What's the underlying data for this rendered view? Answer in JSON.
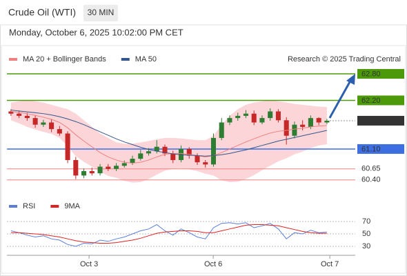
{
  "chart_data": {
    "type": "candlestick",
    "title": "Crude Oil (WTI)",
    "timeframe": "30 MIN",
    "datetime": "Monday, October 6, 2025 10:02:00 PM CET",
    "credit": "Research © 2025 Trading Central",
    "up_color": "#2e7d32",
    "down_color": "#c62828",
    "band_color": "#fbd5d8",
    "xlim": [
      -0.5,
      42.5
    ],
    "xticks": [
      {
        "value": 9.64,
        "label": "Oct 3"
      },
      {
        "value": 24.97,
        "label": "Oct 6"
      },
      {
        "value": 39.36,
        "label": "Oct 7"
      }
    ],
    "ylim": [
      60.1,
      63.3
    ],
    "open": [
      61.95,
      61.9,
      61.85,
      61.8,
      61.65,
      61.7,
      61.55,
      61.45,
      60.85,
      60.5,
      60.6,
      60.55,
      60.7,
      60.65,
      60.72,
      60.78,
      60.88,
      61.0,
      61.05,
      61.15,
      61.0,
      60.85,
      61.1,
      60.95,
      60.8,
      60.75,
      61.35,
      61.7,
      61.8,
      61.85,
      61.9,
      61.7,
      61.8,
      61.95,
      61.75,
      61.4,
      61.65,
      61.6,
      61.8,
      61.7
    ],
    "high": [
      62.0,
      61.97,
      61.92,
      61.86,
      61.76,
      61.78,
      61.62,
      61.5,
      60.92,
      60.66,
      60.68,
      60.76,
      60.76,
      60.78,
      60.84,
      60.95,
      61.08,
      61.12,
      61.3,
      61.2,
      61.06,
      61.18,
      61.14,
      61.0,
      60.85,
      61.45,
      61.8,
      61.86,
      61.92,
      61.98,
      61.97,
      61.86,
      62.02,
      62.0,
      61.82,
      61.72,
      61.75,
      61.86,
      61.82,
      61.78
    ],
    "low": [
      61.85,
      61.8,
      61.74,
      61.58,
      61.6,
      61.48,
      61.4,
      60.78,
      60.42,
      60.44,
      60.5,
      60.5,
      60.6,
      60.6,
      60.68,
      60.74,
      60.84,
      60.95,
      61.0,
      60.94,
      60.78,
      60.8,
      60.88,
      60.74,
      60.68,
      60.7,
      61.3,
      61.64,
      61.74,
      61.8,
      61.64,
      61.66,
      61.74,
      61.7,
      61.2,
      61.34,
      61.52,
      61.55,
      61.64,
      61.66
    ],
    "close": [
      61.9,
      61.85,
      61.8,
      61.65,
      61.7,
      61.55,
      61.45,
      60.85,
      60.5,
      60.6,
      60.55,
      60.7,
      60.65,
      60.72,
      60.78,
      60.88,
      61.0,
      61.05,
      61.15,
      61.0,
      60.85,
      61.1,
      60.95,
      60.8,
      60.75,
      61.35,
      61.7,
      61.8,
      61.85,
      61.9,
      61.7,
      61.8,
      61.95,
      61.75,
      61.4,
      61.65,
      61.6,
      61.8,
      61.7,
      61.74
    ],
    "band": {
      "name": "MA 20 + Bollinger Bands",
      "color": "#f08080",
      "upper": [
        62.15,
        62.18,
        62.2,
        62.18,
        62.15,
        62.1,
        62.05,
        62.0,
        61.9,
        61.75,
        61.6,
        61.45,
        61.35,
        61.25,
        61.22,
        61.22,
        61.25,
        61.28,
        61.32,
        61.35,
        61.35,
        61.34,
        61.32,
        61.3,
        61.3,
        61.4,
        61.65,
        61.85,
        62.0,
        62.1,
        62.15,
        62.18,
        62.2,
        62.18,
        62.15,
        62.12,
        62.1,
        62.08,
        62.06,
        62.05
      ],
      "lower": [
        61.75,
        61.68,
        61.6,
        61.54,
        61.49,
        61.44,
        61.35,
        61.16,
        60.94,
        60.81,
        60.7,
        60.59,
        60.49,
        60.45,
        60.38,
        60.34,
        60.35,
        60.42,
        60.52,
        60.61,
        60.65,
        60.66,
        60.64,
        60.6,
        60.54,
        60.5,
        60.39,
        60.35,
        60.36,
        60.42,
        60.51,
        60.62,
        60.72,
        60.82,
        60.89,
        60.98,
        61.04,
        61.12,
        61.18,
        61.21
      ]
    },
    "series": [
      {
        "name": "MA 20 + Bollinger Bands",
        "color": "#f08080",
        "values": [
          61.95,
          61.93,
          61.9,
          61.86,
          61.82,
          61.77,
          61.7,
          61.58,
          61.42,
          61.28,
          61.15,
          61.02,
          60.92,
          60.85,
          60.8,
          60.78,
          60.8,
          60.85,
          60.92,
          60.98,
          61.0,
          61.0,
          60.98,
          60.95,
          60.92,
          60.95,
          61.02,
          61.1,
          61.18,
          61.26,
          61.33,
          61.4,
          61.46,
          61.5,
          61.52,
          61.55,
          61.57,
          61.6,
          61.62,
          61.63
        ]
      },
      {
        "name": "MA 50",
        "color": "#34568b",
        "values": [
          61.98,
          61.96,
          61.94,
          61.92,
          61.9,
          61.87,
          61.83,
          61.78,
          61.72,
          61.65,
          61.57,
          61.49,
          61.41,
          61.33,
          61.26,
          61.2,
          61.14,
          61.09,
          61.05,
          61.02,
          60.99,
          60.97,
          60.96,
          60.95,
          60.94,
          60.95,
          60.97,
          61.0,
          61.04,
          61.08,
          61.13,
          61.18,
          61.23,
          61.28,
          61.32,
          61.36,
          61.4,
          61.44,
          61.48,
          61.52
        ]
      }
    ],
    "levels": [
      {
        "value": 62.8,
        "label": "62.80",
        "color": "#4c9a0a",
        "style": "box"
      },
      {
        "value": 62.2,
        "label": "62.20",
        "color": "#4c9a0a",
        "style": "box"
      },
      {
        "value": 61.74,
        "color": "#333333",
        "style": "current"
      },
      {
        "value": 61.1,
        "label": "61.10",
        "color": "#3d6fe0",
        "style": "box"
      },
      {
        "value": 60.65,
        "color": "#f08080",
        "style": "text"
      },
      {
        "value": 60.4,
        "label": "60.40",
        "color": "#f08080",
        "style": "text"
      }
    ],
    "rsi": {
      "ylim": [
        20,
        80
      ],
      "yticks": [
        70,
        50,
        30
      ],
      "series": [
        {
          "name": "RSI",
          "color": "#5b7fd6",
          "values": [
            55,
            52,
            48,
            45,
            47,
            42,
            40,
            33,
            30,
            35,
            34,
            40,
            38,
            42,
            45,
            50,
            55,
            58,
            65,
            55,
            48,
            58,
            52,
            45,
            42,
            60,
            67,
            68,
            66,
            68,
            60,
            63,
            67,
            58,
            42,
            52,
            50,
            56,
            52,
            53
          ]
        },
        {
          "name": "9MA",
          "color": "#e02020",
          "values": [
            52,
            52,
            51,
            50,
            49,
            47,
            45,
            42,
            39,
            37,
            36,
            35,
            35,
            36,
            38,
            40,
            43,
            47,
            51,
            53,
            54,
            55,
            55,
            54,
            52,
            52,
            55,
            58,
            61,
            64,
            65,
            65,
            64,
            63,
            60,
            57,
            54,
            52,
            51,
            51
          ]
        }
      ]
    }
  }
}
